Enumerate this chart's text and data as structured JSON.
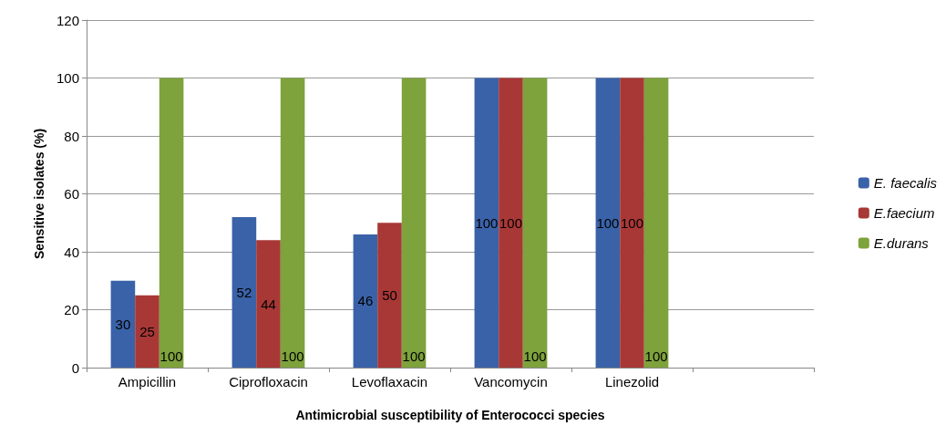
{
  "chart_data": {
    "type": "bar",
    "xlabel": "Antimicrobial susceptibility of Enterococci species",
    "ylabel": "Sensitive isolates (%)",
    "categories": [
      "Ampicillin",
      "Ciprofloxacin",
      "Levoflaxacin",
      "Vancomycin",
      "Linezolid",
      null
    ],
    "series": [
      {
        "name": "E. faecalis",
        "color": "#3a62a8",
        "values": [
          30,
          52,
          46,
          100,
          100,
          null
        ]
      },
      {
        "name": "E.faecium",
        "color": "#a83836",
        "values": [
          25,
          44,
          50,
          100,
          100,
          null
        ]
      },
      {
        "name": "E.durans",
        "color": "#7ea23c",
        "values": [
          100,
          100,
          100,
          100,
          100,
          null
        ]
      }
    ],
    "ylim": [
      0,
      120
    ],
    "yticks": [
      0,
      20,
      40,
      60,
      80,
      100,
      120
    ],
    "grid": "y",
    "legend": "right",
    "data_labels": true
  }
}
